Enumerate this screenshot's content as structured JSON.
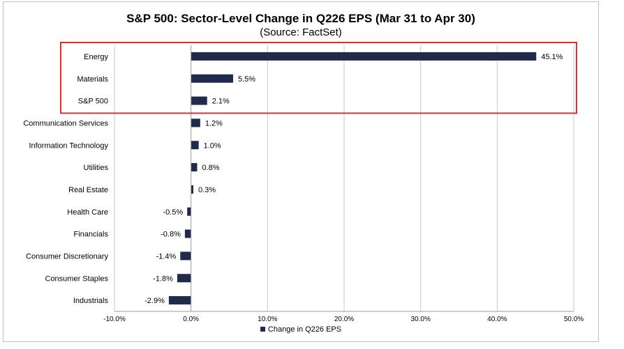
{
  "chart_data": {
    "type": "bar",
    "orientation": "horizontal",
    "title": "S&P 500: Sector-Level Change in Q226 EPS (Mar 31 to Apr 30)",
    "subtitle": "(Source: FactSet)",
    "categories": [
      "Energy",
      "Materials",
      "S&P 500",
      "Communication Services",
      "Information Technology",
      "Utilities",
      "Real Estate",
      "Health Care",
      "Financials",
      "Consumer Discretionary",
      "Consumer Staples",
      "Industrials"
    ],
    "series": [
      {
        "name": "Change in Q226 EPS",
        "values": [
          45.1,
          5.5,
          2.1,
          1.2,
          1.0,
          0.8,
          0.3,
          -0.5,
          -0.8,
          -1.4,
          -1.8,
          -2.9
        ],
        "labels": [
          "45.1%",
          "5.5%",
          "2.1%",
          "1.2%",
          "1.0%",
          "0.8%",
          "0.3%",
          "-0.5%",
          "-0.8%",
          "-1.4%",
          "-1.8%",
          "-2.9%"
        ],
        "color": "#1f2a4d"
      }
    ],
    "xlim": [
      -10,
      50
    ],
    "xticks": [
      -10,
      0,
      10,
      20,
      30,
      40,
      50
    ],
    "xtick_labels": [
      "-10.0%",
      "0.0%",
      "10.0%",
      "20.0%",
      "30.0%",
      "40.0%",
      "50.0%"
    ],
    "grid": "vertical",
    "legend": "bottom-center",
    "highlight": {
      "categories": [
        "Energy",
        "Materials",
        "S&P 500"
      ],
      "color": "#d93030"
    }
  }
}
